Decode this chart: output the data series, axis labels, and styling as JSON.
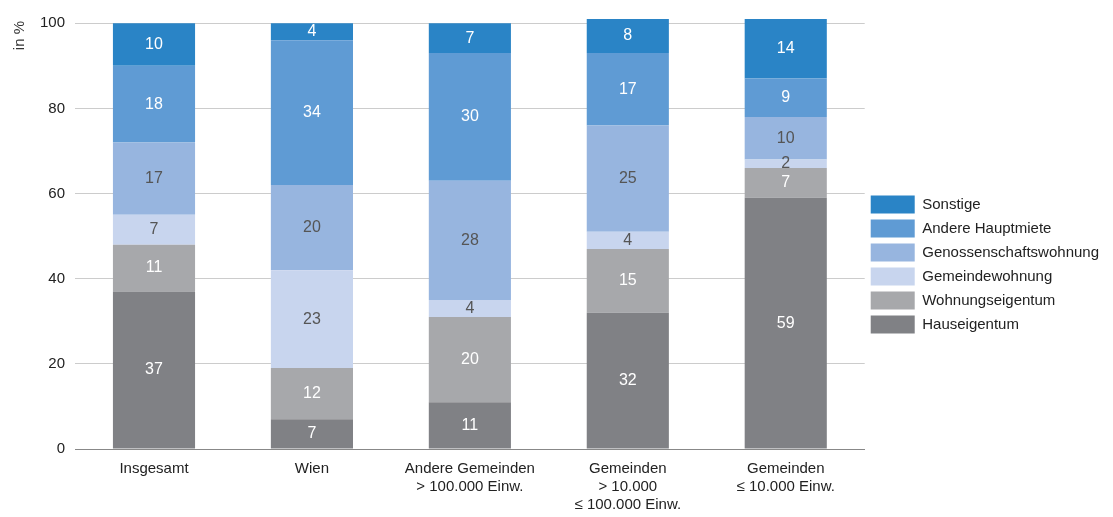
{
  "chart_data": {
    "type": "bar",
    "stacked": true,
    "ylabel": "in %",
    "categories": [
      "Insgesamt",
      "Wien",
      "Andere Gemeinden\n> 100.000 Einw.",
      "Gemeinden\n> 10.000\n≤ 100.000 Einw.",
      "Gemeinden\n≤ 10.000 Einw."
    ],
    "series": [
      {
        "name": "Hauseigentum",
        "color": "#808185",
        "values": [
          37,
          7,
          11,
          32,
          59
        ]
      },
      {
        "name": "Wohnungseigentum",
        "color": "#a7a8ab",
        "values": [
          11,
          12,
          20,
          15,
          7
        ]
      },
      {
        "name": "Gemeindewohnung",
        "color": "#c8d5ee",
        "values": [
          7,
          23,
          4,
          4,
          2
        ]
      },
      {
        "name": "Genossenschaftswohnung",
        "color": "#97b5df",
        "values": [
          17,
          20,
          28,
          25,
          10
        ]
      },
      {
        "name": "Andere Hauptmiete",
        "color": "#5f9bd4",
        "values": [
          18,
          34,
          30,
          17,
          9
        ]
      },
      {
        "name": "Sonstige",
        "color": "#2a84c6",
        "values": [
          10,
          4,
          7,
          8,
          14
        ]
      }
    ],
    "ylim": [
      0,
      101
    ],
    "yticks": [
      0,
      20,
      40,
      60,
      80,
      100
    ],
    "grid": "y",
    "legend": "right",
    "data_labels": true
  }
}
